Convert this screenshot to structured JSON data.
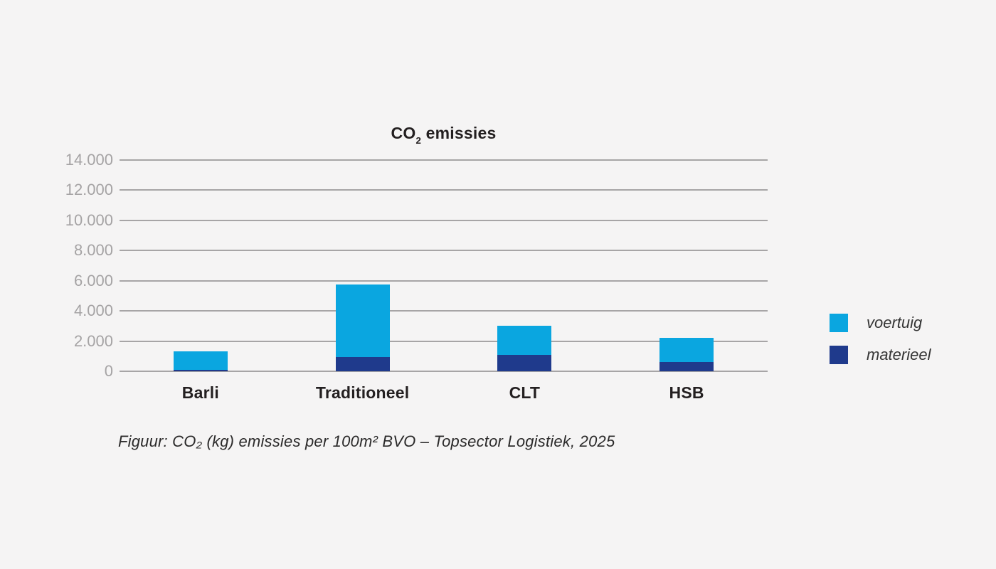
{
  "title": {
    "co": "CO",
    "sub": "2",
    "rest": " emissies"
  },
  "chart_data": {
    "type": "bar",
    "stacked": true,
    "title": "CO2 emissies",
    "categories": [
      "Barli",
      "Traditioneel",
      "CLT",
      "HSB"
    ],
    "series": [
      {
        "name": "materieel",
        "color": "#1f3a8c",
        "values": [
          100,
          950,
          1100,
          600
        ]
      },
      {
        "name": "voertuig",
        "color": "#0aa6e0",
        "values": [
          1200,
          4800,
          1900,
          1600
        ]
      }
    ],
    "totals": [
      1300,
      5750,
      3000,
      2200
    ],
    "xlabel": "",
    "ylabel": "",
    "ylim": [
      0,
      14000
    ],
    "ytick_step": 2000,
    "yticks": [
      14000,
      12000,
      10000,
      8000,
      6000,
      4000,
      2000,
      0
    ],
    "ytick_labels": [
      "14.000",
      "12.000",
      "10.000",
      "8.000",
      "6.000",
      "4.000",
      "2.000",
      "0"
    ],
    "grid": true,
    "legend_position": "right-middle"
  },
  "legend": {
    "items": [
      {
        "label": "voertuig",
        "color": "#0aa6e0"
      },
      {
        "label": "materieel",
        "color": "#1f3a8c"
      }
    ]
  },
  "caption": "Figuur: CO₂ (kg) emissies per 100m² BVO – Topsector Logistiek, 2025",
  "colors": {
    "background": "#f5f4f4",
    "gridline": "#a7a5a6",
    "axis_label_text": "#a5a3a4",
    "heading_text": "#231f20",
    "category_label_text": "#231f20",
    "legend_text": "#353535",
    "caption_text": "#2b2a2a",
    "voertuig": "#0aa6e0",
    "materieel": "#1f3a8c"
  }
}
